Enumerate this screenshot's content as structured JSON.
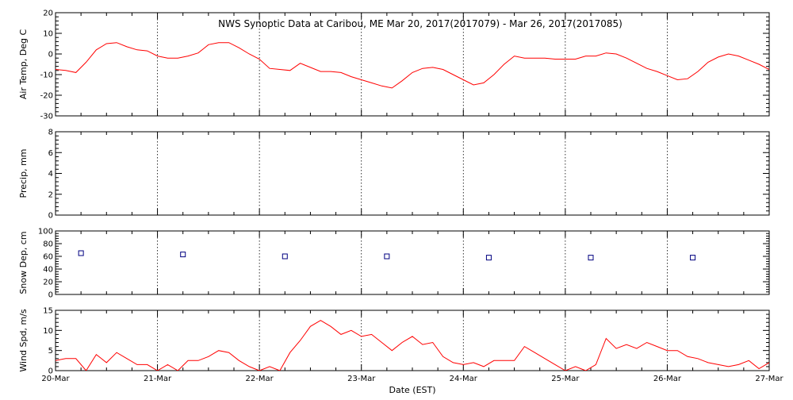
{
  "title": "NWS Synoptic Data at Caribou, ME   Mar 20, 2017(2017079) - Mar 26, 2017(2017085)",
  "xlabel": "Date (EST)",
  "colors": {
    "line": "#ff0000",
    "marker": "#000080",
    "axis": "#000000"
  },
  "chart_data": [
    {
      "type": "line",
      "ylabel": "Air Temp, Deg C",
      "xlim": [
        0,
        7
      ],
      "ylim": [
        -30,
        20
      ],
      "yticks": [
        -30,
        -20,
        -10,
        0,
        10,
        20
      ],
      "x_categories": [
        "20-Mar",
        "21-Mar",
        "22-Mar",
        "23-Mar",
        "24-Mar",
        "25-Mar",
        "26-Mar",
        "27-Mar"
      ],
      "x": [
        0,
        0.1,
        0.2,
        0.3,
        0.4,
        0.5,
        0.6,
        0.7,
        0.8,
        0.9,
        1.0,
        1.1,
        1.2,
        1.3,
        1.4,
        1.5,
        1.6,
        1.7,
        1.8,
        1.9,
        2.0,
        2.1,
        2.2,
        2.3,
        2.4,
        2.5,
        2.6,
        2.7,
        2.8,
        2.9,
        3.0,
        3.1,
        3.2,
        3.3,
        3.4,
        3.5,
        3.6,
        3.7,
        3.8,
        3.9,
        4.0,
        4.1,
        4.2,
        4.3,
        4.4,
        4.5,
        4.6,
        4.7,
        4.8,
        4.9,
        5.0,
        5.1,
        5.2,
        5.3,
        5.4,
        5.5,
        5.6,
        5.7,
        5.8,
        5.9,
        6.0,
        6.1,
        6.2,
        6.3,
        6.4,
        6.5,
        6.6,
        6.7,
        6.8,
        6.9,
        7.0
      ],
      "series": [
        {
          "values": [
            -7.5,
            -8,
            -9,
            -4,
            2,
            5,
            5.5,
            3.5,
            2,
            1.5,
            -1,
            -2,
            -2,
            -1,
            0.5,
            4.5,
            5.5,
            5.5,
            3,
            0,
            -2.5,
            -7,
            -7.5,
            -8,
            -4.5,
            -6.5,
            -8.5,
            -8.5,
            -9,
            -11,
            -12.5,
            -14,
            -15.5,
            -16.5,
            -13,
            -9,
            -7,
            -6.5,
            -7.5,
            -10,
            -12.5,
            -15,
            -14,
            -10,
            -5,
            -1,
            -2,
            -2,
            -2,
            -2.5,
            -2.5,
            -2.5,
            -1,
            -1,
            0.5,
            0,
            -2,
            -4.5,
            -7,
            -8.5,
            -10.5,
            -12.5,
            -12,
            -8.5,
            -4,
            -1.5,
            0,
            -1,
            -3,
            -5,
            -7.5
          ]
        }
      ]
    },
    {
      "type": "line",
      "ylabel": "Precip, mm",
      "xlim": [
        0,
        7
      ],
      "ylim": [
        0,
        8
      ],
      "yticks": [
        0,
        2,
        4,
        6,
        8
      ],
      "x_categories": [
        "20-Mar",
        "21-Mar",
        "22-Mar",
        "23-Mar",
        "24-Mar",
        "25-Mar",
        "26-Mar",
        "27-Mar"
      ],
      "x": [],
      "series": []
    },
    {
      "type": "scatter",
      "ylabel": "Snow Dep, cm",
      "xlim": [
        0,
        7
      ],
      "ylim": [
        0,
        100
      ],
      "yticks": [
        0,
        20,
        40,
        60,
        80,
        100
      ],
      "x_categories": [
        "20-Mar",
        "21-Mar",
        "22-Mar",
        "23-Mar",
        "24-Mar",
        "25-Mar",
        "26-Mar",
        "27-Mar"
      ],
      "x": [
        0.25,
        1.25,
        2.25,
        3.25,
        4.25,
        5.25,
        6.25
      ],
      "series": [
        {
          "values": [
            65,
            63,
            60,
            60,
            58,
            58,
            58
          ]
        }
      ]
    },
    {
      "type": "line",
      "ylabel": "Wind Spd, m/s",
      "xlim": [
        0,
        7
      ],
      "ylim": [
        0,
        15
      ],
      "yticks": [
        0,
        5,
        10,
        15
      ],
      "x_categories": [
        "20-Mar",
        "21-Mar",
        "22-Mar",
        "23-Mar",
        "24-Mar",
        "25-Mar",
        "26-Mar",
        "27-Mar"
      ],
      "x": [
        0,
        0.1,
        0.2,
        0.3,
        0.4,
        0.5,
        0.6,
        0.7,
        0.8,
        0.9,
        1.0,
        1.1,
        1.2,
        1.3,
        1.4,
        1.5,
        1.6,
        1.7,
        1.8,
        1.9,
        2.0,
        2.1,
        2.2,
        2.3,
        2.4,
        2.5,
        2.6,
        2.7,
        2.8,
        2.9,
        3.0,
        3.1,
        3.2,
        3.3,
        3.4,
        3.5,
        3.6,
        3.7,
        3.8,
        3.9,
        4.0,
        4.1,
        4.2,
        4.3,
        4.4,
        4.5,
        4.6,
        4.7,
        4.8,
        4.9,
        5.0,
        5.1,
        5.2,
        5.3,
        5.4,
        5.5,
        5.6,
        5.7,
        5.8,
        5.9,
        6.0,
        6.1,
        6.2,
        6.3,
        6.4,
        6.5,
        6.6,
        6.7,
        6.8,
        6.9,
        7.0
      ],
      "series": [
        {
          "values": [
            2.5,
            3,
            3,
            0,
            4,
            2,
            4.5,
            3,
            1.5,
            1.5,
            0,
            1.5,
            0,
            2.5,
            2.5,
            3.5,
            5,
            4.5,
            2.5,
            1,
            0,
            1,
            0,
            4.5,
            7.5,
            11,
            12.5,
            11,
            9,
            10,
            8.5,
            9,
            7,
            5,
            7,
            8.5,
            6.5,
            7,
            3.5,
            2,
            1.5,
            2,
            1,
            2.5,
            2.5,
            2.5,
            6,
            4.5,
            3,
            1.5,
            0,
            1,
            0,
            1.5,
            8,
            5.5,
            6.5,
            5.5,
            7,
            6,
            5,
            5,
            3.5,
            3,
            2,
            1.5,
            1,
            1.5,
            2.5,
            0.5,
            2
          ]
        }
      ]
    }
  ]
}
